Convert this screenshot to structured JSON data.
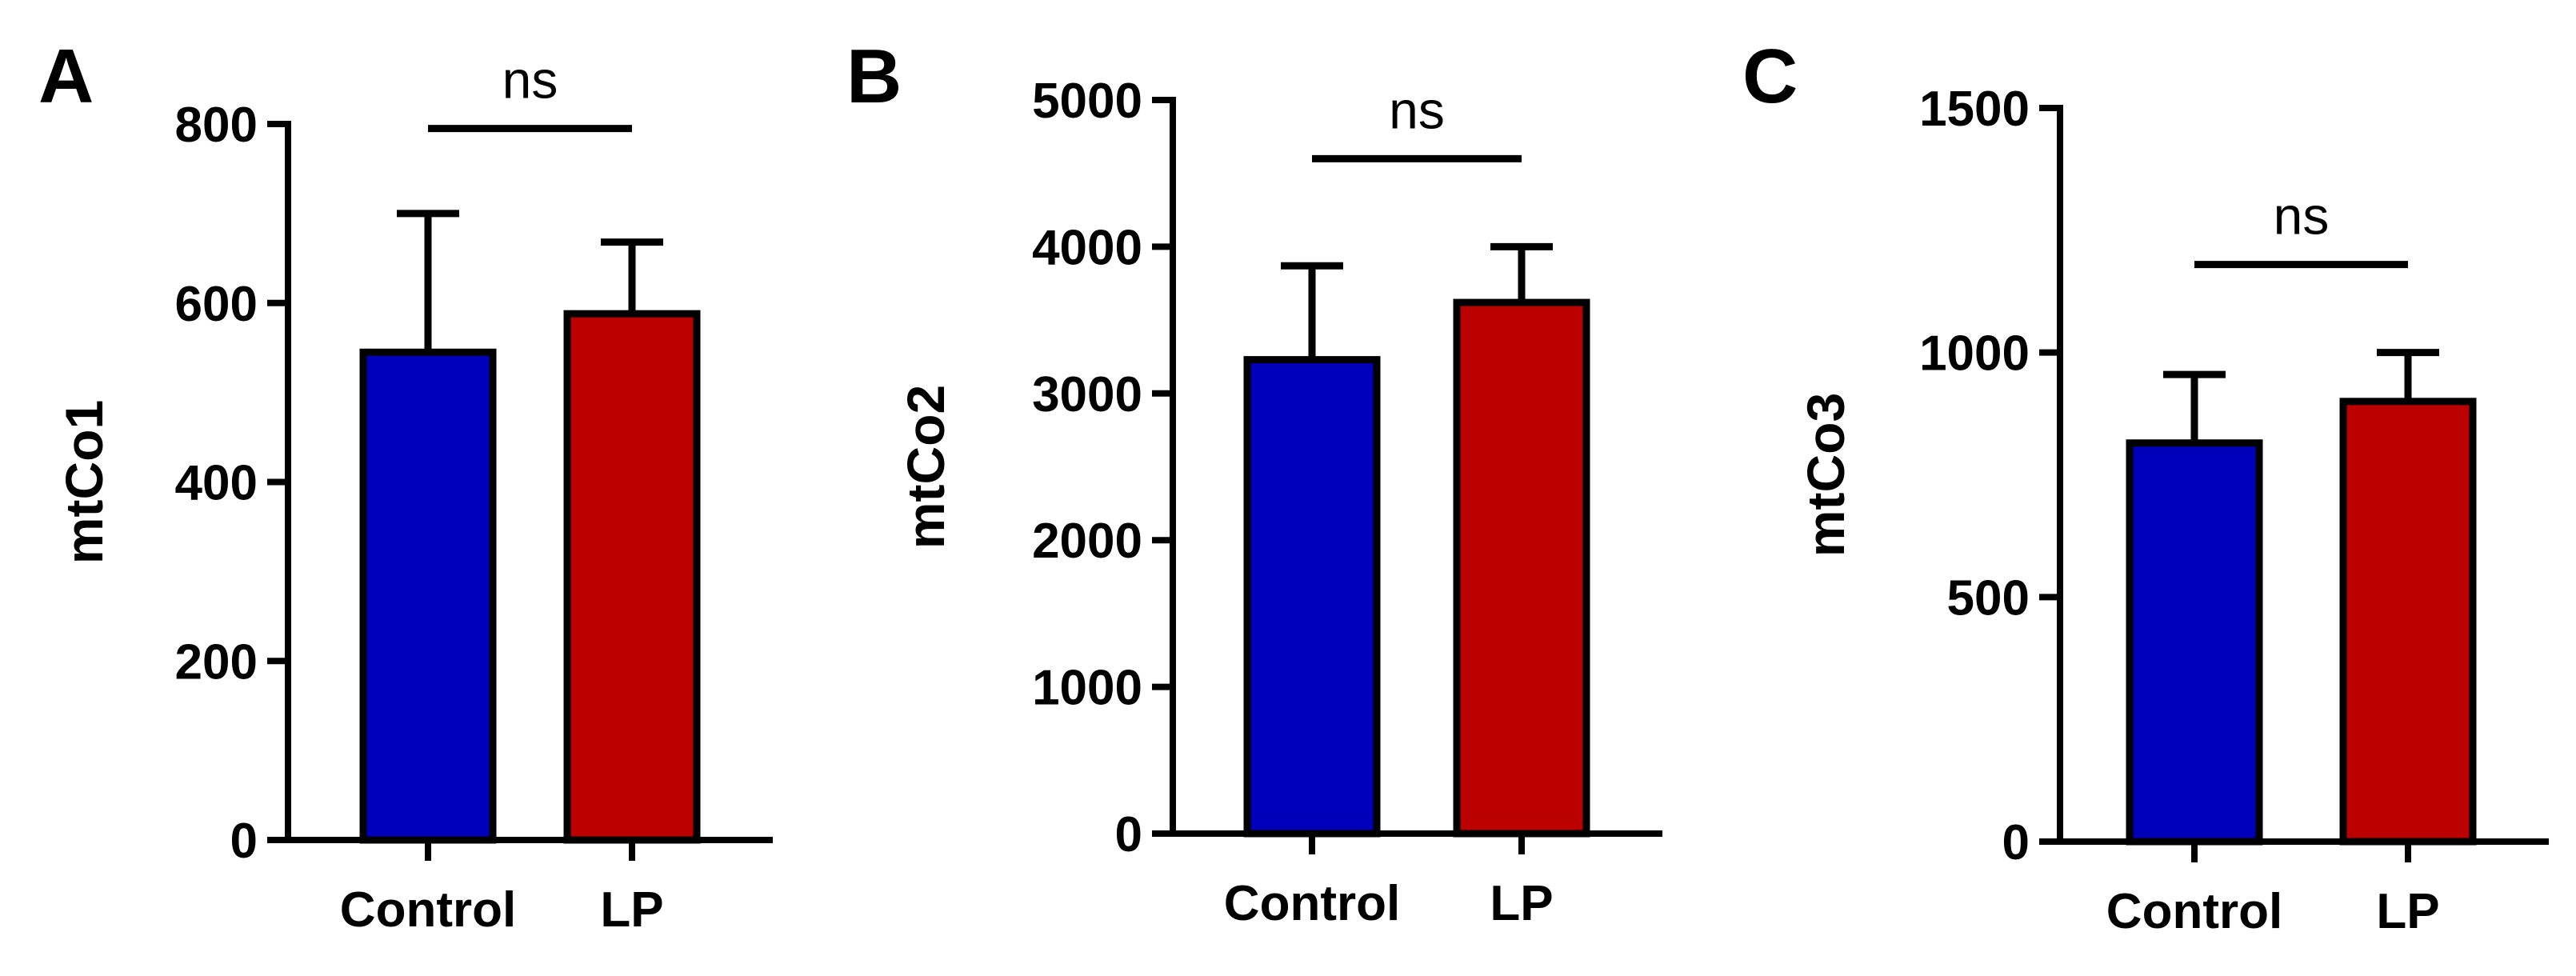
{
  "chart_data": [
    {
      "type": "bar",
      "panel": "A",
      "categories": [
        "Control",
        "LP"
      ],
      "values": [
        545,
        588
      ],
      "error_upper": [
        700,
        668
      ],
      "colors": [
        "#0000bb",
        "#bb0000"
      ],
      "ylabel": "mtCo1",
      "xlabel": "",
      "ylim": [
        0,
        800
      ],
      "yticks": [
        "0",
        "200",
        "400",
        "600",
        "800"
      ],
      "significance": {
        "label": "ns",
        "value": 795
      }
    },
    {
      "type": "bar",
      "panel": "B",
      "categories": [
        "Control",
        "LP"
      ],
      "values": [
        3230,
        3620
      ],
      "error_upper": [
        3870,
        4000
      ],
      "colors": [
        "#0000bb",
        "#bb0000"
      ],
      "ylabel": "mtCo2",
      "xlabel": "",
      "ylim": [
        0,
        5000
      ],
      "yticks": [
        "0",
        "1000",
        "2000",
        "3000",
        "4000",
        "5000"
      ],
      "significance": {
        "label": "ns",
        "value": 4600
      }
    },
    {
      "type": "bar",
      "panel": "C",
      "categories": [
        "Control",
        "LP"
      ],
      "values": [
        815,
        900
      ],
      "error_upper": [
        955,
        1000
      ],
      "colors": [
        "#0000bb",
        "#bb0000"
      ],
      "ylabel": "mtCo3",
      "xlabel": "",
      "ylim": [
        0,
        1500
      ],
      "yticks": [
        "0",
        "500",
        "1000",
        "1500"
      ],
      "significance": {
        "label": "ns",
        "value": 1180
      }
    }
  ]
}
